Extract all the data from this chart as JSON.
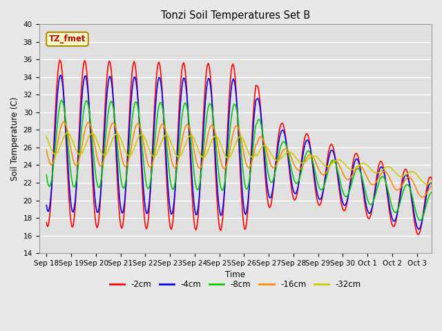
{
  "title": "Tonzi Soil Temperatures Set B",
  "xlabel": "Time",
  "ylabel": "Soil Temperature (C)",
  "ylim": [
    14,
    40
  ],
  "annotation": "TZ_fmet",
  "series": {
    "-2cm": {
      "color": "#ff0000",
      "lw": 1.2
    },
    "-4cm": {
      "color": "#0000ff",
      "lw": 1.2
    },
    "-8cm": {
      "color": "#00cc00",
      "lw": 1.2
    },
    "-16cm": {
      "color": "#ff8800",
      "lw": 1.2
    },
    "-32cm": {
      "color": "#cccc00",
      "lw": 1.2
    }
  },
  "legend_order": [
    "-2cm",
    "-4cm",
    "-8cm",
    "-16cm",
    "-32cm"
  ],
  "yticks": [
    14,
    16,
    18,
    20,
    22,
    24,
    26,
    28,
    30,
    32,
    34,
    36,
    38,
    40
  ],
  "plot_bg_color": "#e0e0e0",
  "fig_bg_color": "#e8e8e8",
  "grid_color": "#ffffff"
}
